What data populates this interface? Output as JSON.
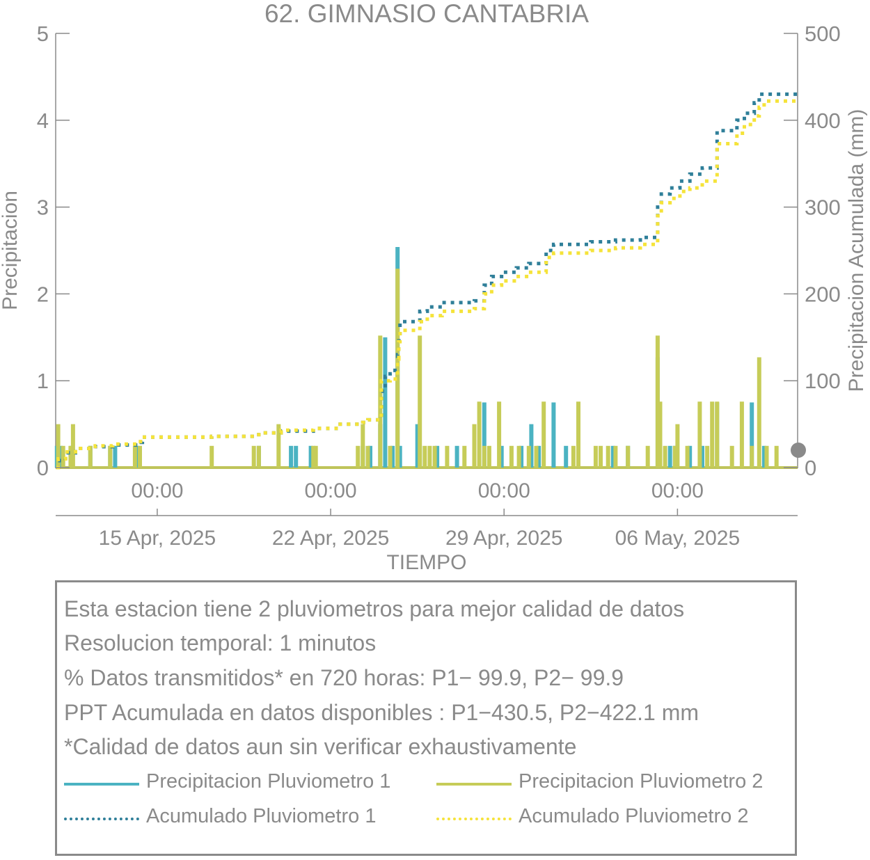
{
  "colors": {
    "p1": "#4bb3c2",
    "p2": "#c6cc58",
    "acc1": "#2f7f99",
    "acc2": "#f5e33a",
    "axis": "#8a8a8a"
  },
  "chart_data": {
    "type": "bar",
    "title": "62. GIMNASIO CANTABRIA",
    "xlabel": "TIEMPO",
    "ylabel": "Precipitacion",
    "y2label": "Precipitacion Acumulada (mm)",
    "ylim": [
      0,
      5
    ],
    "y2lim": [
      0,
      500
    ],
    "yticks": [
      0,
      1,
      2,
      3,
      4,
      5
    ],
    "y2ticks": [
      0,
      100,
      200,
      300,
      400,
      500
    ],
    "x_range_days": [
      10.9,
      40.85
    ],
    "x_ticks": [
      {
        "day": 15,
        "time_label": "00:00",
        "date_label": "15 Apr, 2025"
      },
      {
        "day": 22,
        "time_label": "00:00",
        "date_label": "22 Apr, 2025"
      },
      {
        "day": 29,
        "time_label": "00:00",
        "date_label": "29 Apr, 2025"
      },
      {
        "day": 36,
        "time_label": "00:00",
        "date_label": "06 May, 2025"
      }
    ],
    "grid": false,
    "series": [
      {
        "name": "Precipitacion Pluviometro 1",
        "kind": "bar",
        "axis": "left",
        "points": [
          [
            10.95,
            0.25
          ],
          [
            11.1,
            0.25
          ],
          [
            11.55,
            0.25
          ],
          [
            12.3,
            0.25
          ],
          [
            13.1,
            0.25
          ],
          [
            13.3,
            0.25
          ],
          [
            14.2,
            0.25
          ],
          [
            19.1,
            0.25
          ],
          [
            20.4,
            0.25
          ],
          [
            20.6,
            0.25
          ],
          [
            21.2,
            0.25
          ],
          [
            23.3,
            0.25
          ],
          [
            23.6,
            0.25
          ],
          [
            24.0,
            0.5
          ],
          [
            24.2,
            1.5
          ],
          [
            24.5,
            0.25
          ],
          [
            24.7,
            2.54
          ],
          [
            24.8,
            0.25
          ],
          [
            25.5,
            0.5
          ],
          [
            25.6,
            0.25
          ],
          [
            26.3,
            0.25
          ],
          [
            27.1,
            0.25
          ],
          [
            27.8,
            0.25
          ],
          [
            28.2,
            0.75
          ],
          [
            28.9,
            0.25
          ],
          [
            29.7,
            0.25
          ],
          [
            30.1,
            0.5
          ],
          [
            30.4,
            0.25
          ],
          [
            31.0,
            0.75
          ],
          [
            31.5,
            0.25
          ],
          [
            32.0,
            0.25
          ],
          [
            33.4,
            0.25
          ],
          [
            34.0,
            0.25
          ],
          [
            35.2,
            1.27
          ],
          [
            35.7,
            0.25
          ],
          [
            35.9,
            0.25
          ],
          [
            36.5,
            0.25
          ],
          [
            37.0,
            0.25
          ],
          [
            37.6,
            0.75
          ],
          [
            39.0,
            0.75
          ],
          [
            39.5,
            0.25
          ]
        ]
      },
      {
        "name": "Precipitacion Pluviometro 2",
        "kind": "bar",
        "axis": "left",
        "points": [
          [
            11.0,
            0.5
          ],
          [
            11.2,
            0.25
          ],
          [
            11.5,
            0.25
          ],
          [
            11.6,
            0.5
          ],
          [
            12.3,
            0.25
          ],
          [
            13.1,
            0.25
          ],
          [
            14.1,
            0.25
          ],
          [
            14.3,
            0.25
          ],
          [
            17.2,
            0.25
          ],
          [
            18.9,
            0.25
          ],
          [
            19.1,
            0.25
          ],
          [
            19.9,
            0.5
          ],
          [
            21.3,
            0.25
          ],
          [
            21.4,
            0.25
          ],
          [
            23.1,
            0.25
          ],
          [
            23.3,
            0.5
          ],
          [
            23.5,
            0.25
          ],
          [
            24.0,
            1.52
          ],
          [
            24.4,
            0.25
          ],
          [
            24.7,
            2.29
          ],
          [
            25.6,
            1.52
          ],
          [
            25.8,
            0.25
          ],
          [
            26.0,
            0.25
          ],
          [
            26.2,
            0.25
          ],
          [
            26.7,
            0.25
          ],
          [
            27.4,
            0.25
          ],
          [
            27.8,
            0.5
          ],
          [
            28.0,
            0.76
          ],
          [
            28.2,
            0.25
          ],
          [
            28.4,
            0.25
          ],
          [
            28.8,
            0.76
          ],
          [
            29.3,
            0.25
          ],
          [
            29.6,
            0.25
          ],
          [
            30.0,
            0.25
          ],
          [
            30.6,
            0.76
          ],
          [
            30.3,
            0.25
          ],
          [
            31.8,
            0.25
          ],
          [
            32.0,
            0.76
          ],
          [
            32.7,
            0.25
          ],
          [
            32.9,
            0.25
          ],
          [
            33.2,
            0.25
          ],
          [
            33.5,
            0.25
          ],
          [
            34.0,
            0.25
          ],
          [
            34.8,
            0.25
          ],
          [
            35.2,
            1.52
          ],
          [
            35.3,
            0.76
          ],
          [
            35.5,
            0.25
          ],
          [
            35.9,
            0.25
          ],
          [
            36.0,
            0.5
          ],
          [
            36.4,
            0.25
          ],
          [
            36.9,
            0.76
          ],
          [
            37.2,
            0.25
          ],
          [
            37.4,
            0.76
          ],
          [
            37.6,
            0.76
          ],
          [
            38.2,
            0.25
          ],
          [
            38.6,
            0.76
          ],
          [
            39.0,
            0.25
          ],
          [
            39.3,
            1.27
          ],
          [
            39.6,
            0.25
          ],
          [
            40.0,
            0.25
          ]
        ]
      },
      {
        "name": "Acumulado Pluviometro 1",
        "kind": "step-dotted",
        "axis": "right",
        "points": [
          [
            10.92,
            0
          ],
          [
            11.0,
            8
          ],
          [
            11.3,
            17
          ],
          [
            11.7,
            22
          ],
          [
            12.5,
            24
          ],
          [
            13.2,
            26
          ],
          [
            14.2,
            29
          ],
          [
            14.4,
            35
          ],
          [
            17.2,
            36
          ],
          [
            19.0,
            38
          ],
          [
            19.1,
            40
          ],
          [
            20.0,
            42
          ],
          [
            21.3,
            45
          ],
          [
            22.3,
            50
          ],
          [
            23.3,
            52
          ],
          [
            23.5,
            55
          ],
          [
            24.05,
            88
          ],
          [
            24.2,
            105
          ],
          [
            24.4,
            108
          ],
          [
            24.6,
            112
          ],
          [
            24.7,
            130
          ],
          [
            24.75,
            150
          ],
          [
            24.8,
            168
          ],
          [
            25.6,
            180
          ],
          [
            25.9,
            185
          ],
          [
            26.5,
            190
          ],
          [
            27.8,
            192
          ],
          [
            28.2,
            210
          ],
          [
            28.5,
            220
          ],
          [
            28.9,
            225
          ],
          [
            29.5,
            230
          ],
          [
            30.0,
            235
          ],
          [
            30.7,
            250
          ],
          [
            31.0,
            257
          ],
          [
            32.5,
            260
          ],
          [
            33.5,
            262
          ],
          [
            34.5,
            265
          ],
          [
            35.2,
            300
          ],
          [
            35.35,
            315
          ],
          [
            35.7,
            322
          ],
          [
            36.1,
            330
          ],
          [
            36.5,
            338
          ],
          [
            37.0,
            345
          ],
          [
            37.6,
            388
          ],
          [
            38.4,
            400
          ],
          [
            38.7,
            408
          ],
          [
            39.1,
            420
          ],
          [
            39.3,
            430
          ],
          [
            40.85,
            430
          ]
        ]
      },
      {
        "name": "Acumulado Pluviometro 2",
        "kind": "step-dotted",
        "axis": "right",
        "points": [
          [
            10.92,
            0
          ],
          [
            11.0,
            10
          ],
          [
            11.3,
            18
          ],
          [
            11.7,
            22
          ],
          [
            12.5,
            25
          ],
          [
            13.2,
            27
          ],
          [
            14.2,
            30
          ],
          [
            14.4,
            35
          ],
          [
            17.2,
            36
          ],
          [
            19.0,
            38
          ],
          [
            19.1,
            40
          ],
          [
            20.0,
            43
          ],
          [
            21.3,
            45
          ],
          [
            22.3,
            50
          ],
          [
            23.3,
            52
          ],
          [
            23.5,
            55
          ],
          [
            24.05,
            100
          ],
          [
            24.4,
            102
          ],
          [
            24.7,
            125
          ],
          [
            24.75,
            145
          ],
          [
            24.8,
            158
          ],
          [
            25.6,
            168
          ],
          [
            25.9,
            175
          ],
          [
            26.5,
            180
          ],
          [
            27.8,
            183
          ],
          [
            28.2,
            200
          ],
          [
            28.5,
            210
          ],
          [
            28.9,
            215
          ],
          [
            29.5,
            220
          ],
          [
            30.0,
            225
          ],
          [
            30.7,
            242
          ],
          [
            31.0,
            247
          ],
          [
            32.5,
            250
          ],
          [
            33.5,
            253
          ],
          [
            34.5,
            257
          ],
          [
            35.2,
            290
          ],
          [
            35.35,
            305
          ],
          [
            35.7,
            310
          ],
          [
            36.1,
            318
          ],
          [
            36.5,
            322
          ],
          [
            37.0,
            330
          ],
          [
            37.6,
            373
          ],
          [
            38.4,
            385
          ],
          [
            38.7,
            395
          ],
          [
            39.1,
            405
          ],
          [
            39.3,
            415
          ],
          [
            39.5,
            422
          ],
          [
            40.85,
            422
          ]
        ]
      }
    ]
  },
  "info": {
    "line1": "Esta estacion tiene 2 pluviometros para mejor calidad de datos",
    "line2": "Resolucion temporal: 1 minutos",
    "line3": "% Datos transmitidos* en 720 horas: P1− 99.9, P2− 99.9",
    "line4": "PPT Acumulada en datos disponibles : P1−430.5, P2−422.1 mm",
    "line5": "*Calidad de datos aun sin verificar exhaustivamente"
  },
  "legend": [
    {
      "label": "Precipitacion Pluviometro 1",
      "style": "solid",
      "color": "#4bb3c2"
    },
    {
      "label": "Precipitacion Pluviometro 2",
      "style": "solid",
      "color": "#c6cc58"
    },
    {
      "label": "Acumulado Pluviometro 1",
      "style": "dotted",
      "color": "#2f7f99"
    },
    {
      "label": "Acumulado Pluviometro 2",
      "style": "dotted",
      "color": "#f5e33a"
    }
  ]
}
